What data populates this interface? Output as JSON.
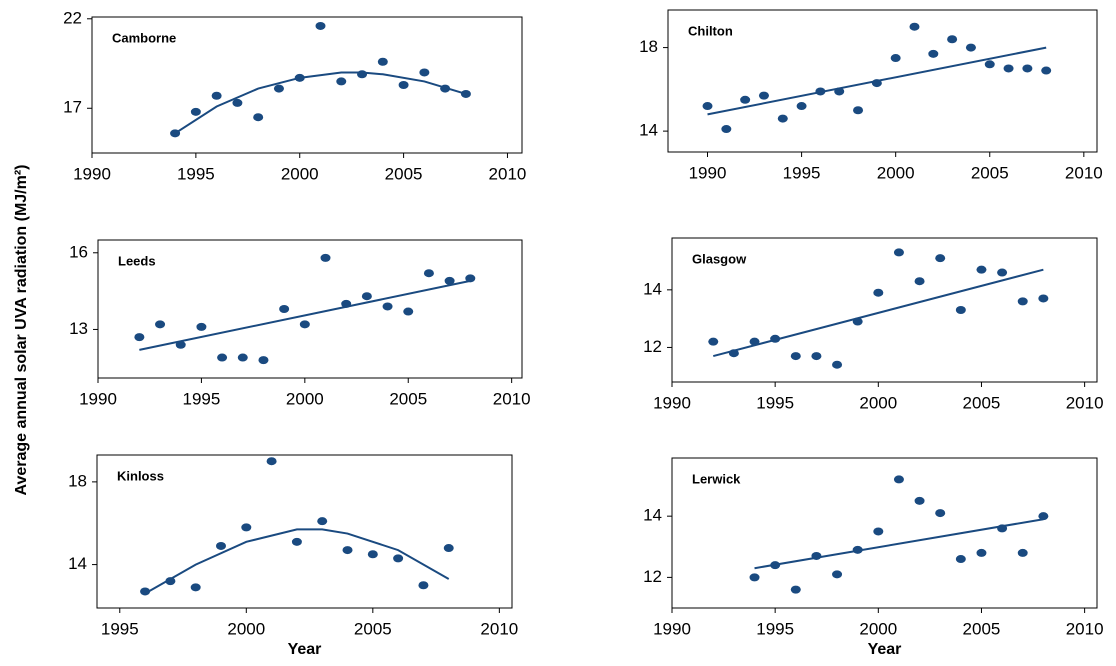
{
  "ylabel": "Average annual solar UVA radiation (MJ/m²)",
  "chart_data": [
    {
      "type": "scatter",
      "title": "Camborne",
      "color": "#1a4a80",
      "x": [
        1994,
        1995,
        1996,
        1997,
        1998,
        1999,
        2000,
        2001,
        2002,
        2003,
        2004,
        2005,
        2006,
        2007,
        2008
      ],
      "values": [
        15.6,
        16.8,
        17.7,
        17.3,
        16.5,
        18.1,
        18.7,
        21.6,
        18.5,
        18.9,
        19.6,
        18.3,
        19.0,
        18.1,
        17.8
      ],
      "fit": {
        "x": [
          1994,
          1996,
          1998,
          2000,
          2002,
          2003,
          2004,
          2006,
          2008
        ],
        "values": [
          15.6,
          17.1,
          18.1,
          18.7,
          19.0,
          19.0,
          18.9,
          18.5,
          17.8
        ]
      },
      "xlim": [
        1990,
        2010.7
      ],
      "xticks": [
        1990,
        1995,
        2000,
        2005,
        2010
      ],
      "ylim": [
        14.5,
        22.1
      ],
      "yticks": [
        17,
        22
      ]
    },
    {
      "type": "scatter",
      "title": "Chilton",
      "color": "#1a4a80",
      "x": [
        1990,
        1991,
        1992,
        1993,
        1994,
        1995,
        1996,
        1997,
        1998,
        1999,
        2000,
        2001,
        2002,
        2003,
        2004,
        2005,
        2006,
        2007,
        2008
      ],
      "values": [
        15.2,
        14.1,
        15.5,
        15.7,
        14.6,
        15.2,
        15.9,
        15.9,
        15.0,
        16.3,
        17.5,
        19.0,
        17.7,
        18.4,
        18.0,
        17.2,
        17.0,
        17.0,
        16.9
      ],
      "fit": {
        "x": [
          1990,
          2008
        ],
        "values": [
          14.8,
          18.0
        ]
      },
      "xlim": [
        1987.9,
        2010.7
      ],
      "xticks": [
        1990,
        1995,
        2000,
        2005,
        2010
      ],
      "ylim": [
        13,
        19.8
      ],
      "yticks": [
        14,
        18
      ]
    },
    {
      "type": "scatter",
      "title": "Leeds",
      "color": "#1a4a80",
      "x": [
        1992,
        1993,
        1994,
        1995,
        1996,
        1997,
        1998,
        1999,
        2000,
        2001,
        2002,
        2003,
        2004,
        2005,
        2006,
        2007,
        2008
      ],
      "values": [
        12.7,
        13.2,
        12.4,
        13.1,
        11.9,
        11.9,
        11.8,
        13.8,
        13.2,
        15.8,
        14.0,
        14.3,
        13.9,
        13.7,
        15.2,
        14.9,
        15.0
      ],
      "fit": {
        "x": [
          1992,
          2008
        ],
        "values": [
          12.2,
          14.9
        ]
      },
      "xlim": [
        1990,
        2010.5
      ],
      "xticks": [
        1990,
        1995,
        2000,
        2005,
        2010
      ],
      "ylim": [
        11.1,
        16.5
      ],
      "yticks": [
        13,
        16
      ]
    },
    {
      "type": "scatter",
      "title": "Glasgow",
      "color": "#1a4a80",
      "x": [
        1992,
        1993,
        1994,
        1995,
        1996,
        1997,
        1998,
        1999,
        2000,
        2001,
        2002,
        2003,
        2004,
        2005,
        2006,
        2007,
        2008
      ],
      "values": [
        12.2,
        11.8,
        12.2,
        12.3,
        11.7,
        11.7,
        11.4,
        12.9,
        13.9,
        15.3,
        14.3,
        15.1,
        13.3,
        14.7,
        14.6,
        13.6,
        13.7
      ],
      "fit": {
        "x": [
          1992,
          2008
        ],
        "values": [
          11.7,
          14.7
        ]
      },
      "xlim": [
        1990,
        2010.6
      ],
      "xticks": [
        1990,
        1995,
        2000,
        2005,
        2010
      ],
      "ylim": [
        10.8,
        15.8
      ],
      "yticks": [
        12,
        14
      ]
    },
    {
      "type": "scatter",
      "title": "Kinloss",
      "color": "#1a4a80",
      "xlabel": "Year",
      "x": [
        1996,
        1997,
        1998,
        1999,
        2000,
        2001,
        2002,
        2003,
        2004,
        2005,
        2006,
        2007,
        2008
      ],
      "values": [
        12.7,
        13.2,
        12.9,
        14.9,
        15.8,
        19.0,
        15.1,
        16.1,
        14.7,
        14.5,
        14.3,
        13.0,
        14.8
      ],
      "fit": {
        "x": [
          1996,
          1998,
          2000,
          2002,
          2003,
          2004,
          2006,
          2008
        ],
        "values": [
          12.6,
          14.0,
          15.1,
          15.7,
          15.7,
          15.5,
          14.7,
          13.3
        ]
      },
      "xlim": [
        1994.1,
        2010.5
      ],
      "xticks": [
        1995,
        2000,
        2005,
        2010
      ],
      "ylim": [
        11.9,
        19.3
      ],
      "yticks": [
        14,
        18
      ]
    },
    {
      "type": "scatter",
      "title": "Lerwick",
      "color": "#1a4a80",
      "xlabel": "Year",
      "x": [
        1994,
        1995,
        1996,
        1997,
        1998,
        1999,
        2000,
        2001,
        2002,
        2003,
        2004,
        2005,
        2006,
        2007,
        2008
      ],
      "values": [
        12.0,
        12.4,
        11.6,
        12.7,
        12.1,
        12.9,
        13.5,
        15.2,
        14.5,
        14.1,
        12.6,
        12.8,
        13.6,
        12.8,
        14.0
      ],
      "fit": {
        "x": [
          1994,
          2008
        ],
        "values": [
          12.3,
          13.9
        ]
      },
      "xlim": [
        1990,
        2010.6
      ],
      "xticks": [
        1990,
        1995,
        2000,
        2005,
        2010
      ],
      "ylim": [
        11,
        15.9
      ],
      "yticks": [
        12,
        14
      ]
    }
  ]
}
